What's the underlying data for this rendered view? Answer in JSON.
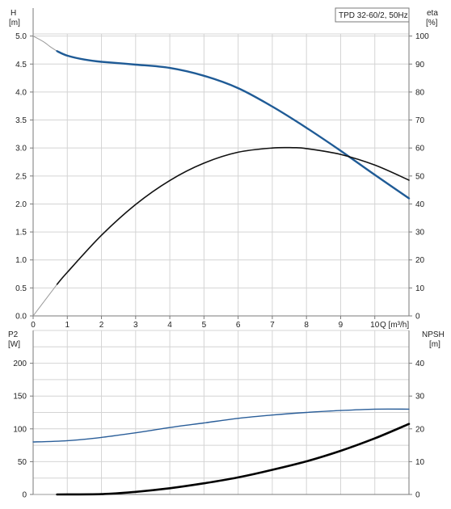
{
  "colors": {
    "grid": "#d4d4d4",
    "frame": "#7a7a7a",
    "head_curve": "#1f5b96",
    "eta_curve": "#111111",
    "p2_curve": "#2a5e99",
    "npsh_curve": "#000000",
    "thin_extension": "#9a9a9a"
  },
  "legend_box": {
    "text": "TPD 32-60/2, 50Hz"
  },
  "chart_data": [
    {
      "type": "line",
      "panel": "top",
      "xlabel": "Q [m³/h]",
      "ylabel_left": [
        "H",
        "[m]"
      ],
      "ylabel_right": [
        "eta",
        "[%]"
      ],
      "xlim": [
        0,
        11
      ],
      "ylim_left": [
        0,
        5.5
      ],
      "ylim_right": [
        0,
        110
      ],
      "x_ticks": [
        "0",
        "1",
        "2",
        "3",
        "4",
        "5",
        "6",
        "7",
        "8",
        "9",
        "10"
      ],
      "y_left_ticks": [
        "0.0",
        "0.5",
        "1.0",
        "1.5",
        "2.0",
        "2.5",
        "3.0",
        "3.5",
        "4.0",
        "4.5",
        "5.0"
      ],
      "y_right_ticks": [
        "0",
        "10",
        "20",
        "30",
        "40",
        "50",
        "60",
        "70",
        "80",
        "90",
        "100"
      ],
      "grid": true,
      "series": [
        {
          "key": "H",
          "axis": "left",
          "color": "#1f5b96",
          "x": [
            0.7,
            1.0,
            1.5,
            2.0,
            3.0,
            4.0,
            5.0,
            6.0,
            7.0,
            8.0,
            9.0,
            10.0,
            11.0
          ],
          "y": [
            4.73,
            4.65,
            4.58,
            4.54,
            4.49,
            4.43,
            4.29,
            4.07,
            3.74,
            3.36,
            2.95,
            2.52,
            2.1
          ]
        },
        {
          "key": "eta",
          "axis": "right",
          "color": "#111111",
          "x": [
            0.7,
            1.0,
            2.0,
            3.0,
            4.0,
            5.0,
            6.0,
            7.0,
            7.6,
            8.0,
            9.0,
            10.0,
            11.0
          ],
          "y": [
            11.3,
            15.6,
            28.8,
            39.8,
            48.4,
            54.6,
            58.5,
            60.0,
            60.1,
            59.8,
            57.7,
            53.9,
            48.5
          ]
        }
      ],
      "extensions": [
        {
          "x": [
            0,
            0.3,
            0.5,
            0.7
          ],
          "y": [
            5.0,
            4.9,
            4.81,
            4.73
          ],
          "axis": "left"
        },
        {
          "x": [
            0,
            0.7
          ],
          "y": [
            0,
            11.3
          ],
          "axis": "right"
        }
      ]
    },
    {
      "type": "line",
      "panel": "bottom",
      "ylabel_left": [
        "P2",
        "[W]"
      ],
      "ylabel_right": [
        "NPSH",
        "[m]"
      ],
      "xlim": [
        0,
        11
      ],
      "ylim_left": [
        0,
        250
      ],
      "ylim_right": [
        0,
        50
      ],
      "y_left_ticks": [
        "0",
        "50",
        "100",
        "150",
        "200"
      ],
      "y_right_ticks": [
        "0",
        "10",
        "20",
        "30",
        "40"
      ],
      "grid": true,
      "series": [
        {
          "key": "P2",
          "axis": "left",
          "color": "#2a5e99",
          "x": [
            0,
            1,
            2,
            3,
            4,
            5,
            6,
            7,
            8,
            9,
            10,
            11
          ],
          "y": [
            80,
            82,
            87,
            94,
            102,
            109,
            116,
            121,
            125,
            128,
            130,
            130
          ]
        },
        {
          "key": "NPSH",
          "axis": "right",
          "color": "#000000",
          "x": [
            0.7,
            2,
            3,
            4,
            5,
            6,
            7,
            8,
            9,
            10,
            11
          ],
          "y": [
            0,
            0.1,
            0.8,
            1.9,
            3.4,
            5.2,
            7.5,
            10.1,
            13.3,
            17.1,
            21.5
          ]
        }
      ],
      "extensions": [
        {
          "x": [
            0,
            0.7
          ],
          "y": [
            0,
            0
          ],
          "axis": "right"
        }
      ]
    }
  ]
}
